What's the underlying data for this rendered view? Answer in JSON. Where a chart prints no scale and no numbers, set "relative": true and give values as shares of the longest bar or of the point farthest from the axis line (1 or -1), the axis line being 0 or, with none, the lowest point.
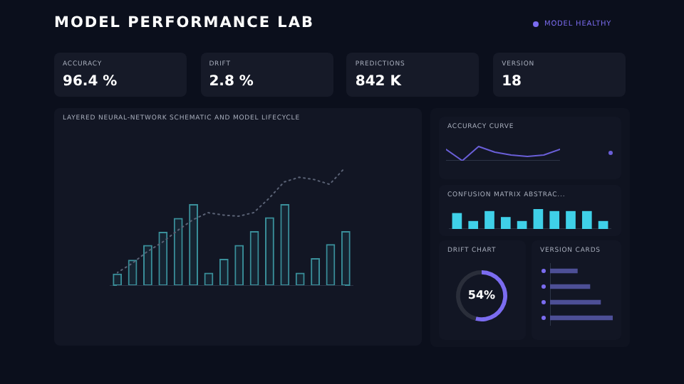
{
  "chart_data": [
    {
      "type": "other",
      "title": "MODEL PERFORMANCE LAB",
      "annotations": [
        "MODEL HEALTHY",
        "ACCURACY",
        "96.4 %",
        "DRIFT",
        "2.8 %",
        "PREDICTIONS",
        "842 K",
        "VERSION",
        "18"
      ]
    },
    {
      "type": "bar",
      "title": "LAYERED NEURAL-NETWORK SCHEMATIC AND MODEL LIFECYCLE",
      "relative": true,
      "categories": [
        null,
        null,
        null,
        null,
        null,
        null,
        null,
        null,
        null,
        null,
        null,
        null,
        null,
        null,
        null,
        null
      ],
      "values": [
        0.15,
        0.32,
        0.5,
        0.66,
        0.83,
        1,
        0.16,
        0.33,
        0.5,
        0.67,
        0.84,
        1,
        0.16,
        0.34,
        0.51,
        0.67
      ],
      "color": "#3a8f9a"
    },
    {
      "type": "line",
      "relative": true,
      "marker": "none",
      "line_style": "dotted",
      "categories": [
        null,
        null,
        null,
        null,
        null,
        null,
        null,
        null,
        null,
        null,
        null,
        null,
        null,
        null,
        null,
        null
      ],
      "values": [
        0.11,
        0.19,
        0.29,
        0.37,
        0.47,
        0.56,
        0.62,
        0.6,
        0.59,
        0.62,
        0.74,
        0.88,
        0.92,
        0.9,
        0.86,
        1
      ],
      "color": "#5a6275"
    },
    {
      "type": "line",
      "title": "ACCURACY CURVE",
      "relative": true,
      "marker": "none",
      "categories": [
        null,
        null,
        null,
        null,
        null,
        null,
        null,
        null
      ],
      "values": [
        0.8,
        0,
        1,
        0.6,
        0.4,
        0.3,
        0.4,
        0.8
      ],
      "color": "#6a5fd8"
    },
    {
      "type": "bar",
      "title": "CONFUSION MATRIX ABSTRAC...",
      "relative": true,
      "categories": [
        null,
        null,
        null,
        null,
        null,
        null,
        null,
        null,
        null,
        null
      ],
      "values": [
        0.8,
        0.4,
        0.9,
        0.6,
        0.4,
        1,
        0.9,
        0.9,
        0.9,
        0.4
      ],
      "color": "#3fd0e8"
    },
    {
      "type": "donut",
      "title": "DRIFT CHART",
      "categories": [
        null,
        null
      ],
      "values": [
        54,
        46
      ],
      "colors": [
        "#7b6cf0",
        "#2a2e3a"
      ],
      "value_labels": [
        "54%",
        null
      ]
    },
    {
      "type": "bar",
      "title": "VERSION CARDS",
      "relative": true,
      "orientation": "horizontal",
      "categories": [
        null,
        null,
        null,
        null
      ],
      "values": [
        0.44,
        0.64,
        0.81,
        1
      ],
      "color": "#4d4f96"
    }
  ]
}
